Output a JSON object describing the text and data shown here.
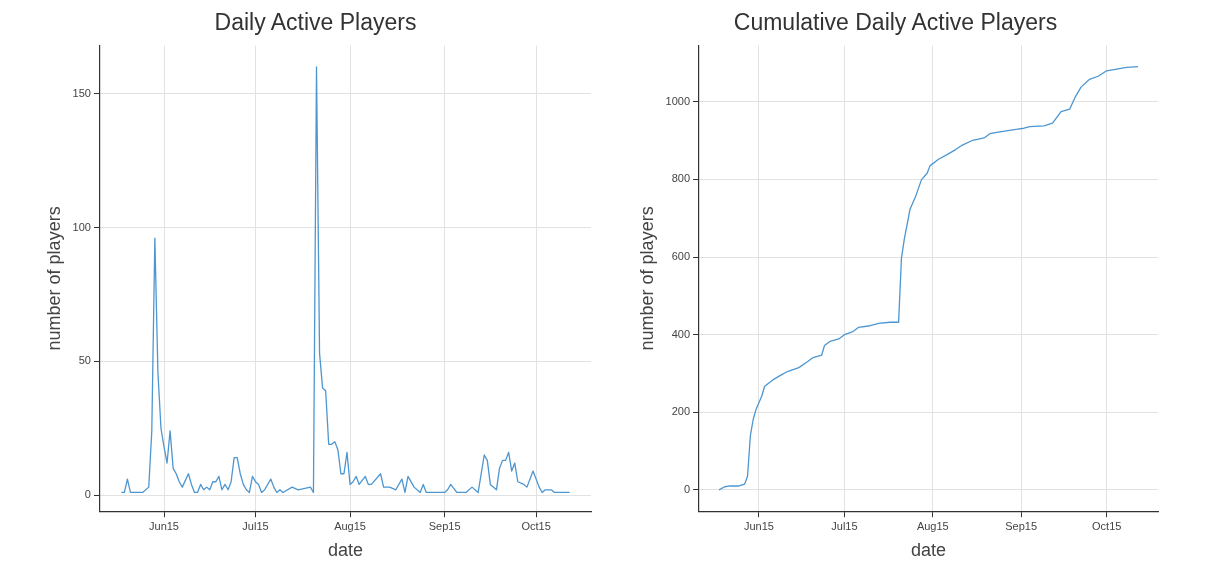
{
  "chart_data": [
    {
      "type": "line",
      "title": "Daily Active Players",
      "xlabel": "date",
      "ylabel": "number of players",
      "color": "#4d96d0",
      "grid": true,
      "xlim": [
        "--05-25",
        "--11-02"
      ],
      "xticks": [
        {
          "value": "--06-15",
          "label": "Jun15"
        },
        {
          "value": "--07-15",
          "label": "Jul15"
        },
        {
          "value": "--08-15",
          "label": "Aug15"
        },
        {
          "value": "--09-15",
          "label": "Sep15"
        },
        {
          "value": "--10-15",
          "label": "Oct15"
        }
      ],
      "ylim": [
        -6,
        168
      ],
      "yticks": [
        0,
        50,
        100,
        150
      ],
      "x": [
        "--06-01",
        "--06-02",
        "--06-03",
        "--06-04",
        "--06-08",
        "--06-10",
        "--06-11",
        "--06-12",
        "--06-13",
        "--06-14",
        "--06-15",
        "--06-16",
        "--06-17",
        "--06-18",
        "--06-19",
        "--06-20",
        "--06-21",
        "--06-23",
        "--06-24",
        "--06-25",
        "--06-26",
        "--06-27",
        "--06-28",
        "--06-29",
        "--06-30",
        "--07-01",
        "--07-02",
        "--07-03",
        "--07-04",
        "--07-05",
        "--07-06",
        "--07-07",
        "--07-08",
        "--07-09",
        "--07-10",
        "--07-11",
        "--07-12",
        "--07-13",
        "--07-14",
        "--07-15",
        "--07-16",
        "--07-17",
        "--07-18",
        "--07-20",
        "--07-21",
        "--07-22",
        "--07-23",
        "--07-24",
        "--07-27",
        "--07-29",
        "--08-02",
        "--08-03",
        "--08-04",
        "--08-05",
        "--08-06",
        "--08-07",
        "--08-08",
        "--08-09",
        "--08-10",
        "--08-11",
        "--08-12",
        "--08-13",
        "--08-14",
        "--08-15",
        "--08-16",
        "--08-17",
        "--08-18",
        "--08-20",
        "--08-21",
        "--08-22",
        "--08-25",
        "--08-26",
        "--08-28",
        "--08-30",
        "--09-01",
        "--09-02",
        "--09-03",
        "--09-05",
        "--09-07",
        "--09-08",
        "--09-09",
        "--09-15",
        "--09-16",
        "--09-17",
        "--09-19",
        "--09-22",
        "--09-24",
        "--09-26",
        "--09-28",
        "--09-29",
        "--09-30",
        "--10-02",
        "--10-03",
        "--10-04",
        "--10-05",
        "--10-06",
        "--10-07",
        "--10-08",
        "--10-09",
        "--10-11",
        "--10-12",
        "--10-14",
        "--10-16",
        "--10-17",
        "--10-18",
        "--10-20",
        "--10-21",
        "--10-26"
      ],
      "values": [
        1,
        1,
        6,
        1,
        1,
        3,
        24,
        96,
        46,
        25,
        18,
        12,
        24,
        10,
        8,
        5,
        3,
        8,
        4,
        1,
        1,
        4,
        2,
        3,
        2,
        5,
        5,
        7,
        2,
        4,
        2,
        5,
        14,
        14,
        8,
        4,
        2,
        1,
        7,
        5,
        4,
        1,
        2,
        6,
        3,
        1,
        2,
        1,
        3,
        2,
        3,
        1,
        160,
        53,
        40,
        39,
        19,
        19,
        20,
        17,
        8,
        8,
        16,
        4,
        5,
        7,
        4,
        7,
        4,
        4,
        8,
        3,
        3,
        2,
        6,
        1,
        7,
        3,
        1,
        4,
        1,
        1,
        2,
        4,
        1,
        1,
        3,
        1,
        15,
        13,
        4,
        2,
        10,
        13,
        13,
        16,
        9,
        12,
        5,
        4,
        3,
        9,
        3,
        1,
        2,
        2,
        1,
        1
      ]
    },
    {
      "type": "line",
      "title": "Cumulative Daily Active Players",
      "xlabel": "date",
      "ylabel": "number of players",
      "color": "#4d96d0",
      "grid": true,
      "xlim": [
        "--05-25",
        "--11-02"
      ],
      "xticks": [
        {
          "value": "--06-15",
          "label": "Jun15"
        },
        {
          "value": "--07-15",
          "label": "Jul15"
        },
        {
          "value": "--08-15",
          "label": "Aug15"
        },
        {
          "value": "--09-15",
          "label": "Sep15"
        },
        {
          "value": "--10-15",
          "label": "Oct15"
        }
      ],
      "ylim": [
        -55,
        1145
      ],
      "yticks": [
        0,
        200,
        400,
        600,
        800,
        1000
      ],
      "x": [
        "--06-01",
        "--06-03",
        "--06-05",
        "--06-08",
        "--06-10",
        "--06-11",
        "--06-12",
        "--06-13",
        "--06-14",
        "--06-16",
        "--06-17",
        "--06-20",
        "--06-23",
        "--06-25",
        "--06-29",
        "--07-02",
        "--07-04",
        "--07-07",
        "--07-08",
        "--07-10",
        "--07-13",
        "--07-15",
        "--07-18",
        "--07-20",
        "--07-24",
        "--07-27",
        "--07-31",
        "--08-03",
        "--08-04",
        "--08-05",
        "--08-07",
        "--08-09",
        "--08-11",
        "--08-13",
        "--08-14",
        "--08-17",
        "--08-20",
        "--08-23",
        "--08-25",
        "--08-29",
        "--09-02",
        "--09-04",
        "--09-07",
        "--09-12",
        "--09-16",
        "--09-18",
        "--09-23",
        "--09-26",
        "--09-29",
        "--10-02",
        "--10-04",
        "--10-06",
        "--10-09",
        "--10-12",
        "--10-15",
        "--10-19",
        "--10-22",
        "--10-26"
      ],
      "values": [
        0,
        8,
        10,
        10,
        15,
        35,
        140,
        182,
        208,
        242,
        267,
        284,
        297,
        305,
        315,
        330,
        341,
        347,
        372,
        383,
        389,
        400,
        408,
        419,
        423,
        429,
        432,
        432,
        597,
        646,
        723,
        757,
        799,
        816,
        835,
        852,
        864,
        877,
        887,
        901,
        907,
        918,
        922,
        928,
        932,
        936,
        938,
        945,
        975,
        981,
        1013,
        1038,
        1058,
        1066,
        1080,
        1085,
        1089,
        1091
      ]
    }
  ]
}
